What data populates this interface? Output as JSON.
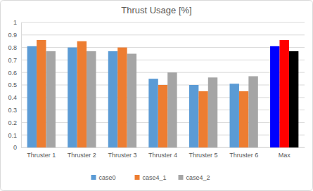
{
  "chart_data": {
    "type": "bar",
    "title": "Thrust Usage [%]",
    "categories": [
      "Thruster 1",
      "Thruster 2",
      "Thruster 3",
      "Thruster 4",
      "Thruster 5",
      "Thruster 6",
      "Max"
    ],
    "series": [
      {
        "name": "case0",
        "color": "#5b9bd5",
        "colors": [
          "#5b9bd5",
          "#5b9bd5",
          "#5b9bd5",
          "#5b9bd5",
          "#5b9bd5",
          "#5b9bd5",
          "#0000ff"
        ],
        "values": [
          0.81,
          0.8,
          0.77,
          0.55,
          0.5,
          0.51,
          0.81
        ]
      },
      {
        "name": "case4_1",
        "color": "#ed7d31",
        "colors": [
          "#ed7d31",
          "#ed7d31",
          "#ed7d31",
          "#ed7d31",
          "#ed7d31",
          "#ed7d31",
          "#ff0000"
        ],
        "values": [
          0.86,
          0.85,
          0.8,
          0.5,
          0.45,
          0.45,
          0.86
        ]
      },
      {
        "name": "case4_2",
        "color": "#a5a5a5",
        "colors": [
          "#a5a5a5",
          "#a5a5a5",
          "#a5a5a5",
          "#a5a5a5",
          "#a5a5a5",
          "#a5a5a5",
          "#000000"
        ],
        "values": [
          0.77,
          0.77,
          0.75,
          0.6,
          0.56,
          0.57,
          0.77
        ]
      }
    ],
    "ylim": [
      0,
      1
    ],
    "yticks": [
      0,
      0.1,
      0.2,
      0.3,
      0.4,
      0.5,
      0.6,
      0.7,
      0.8,
      0.9,
      1
    ],
    "grid": true,
    "legend": "bottom"
  }
}
